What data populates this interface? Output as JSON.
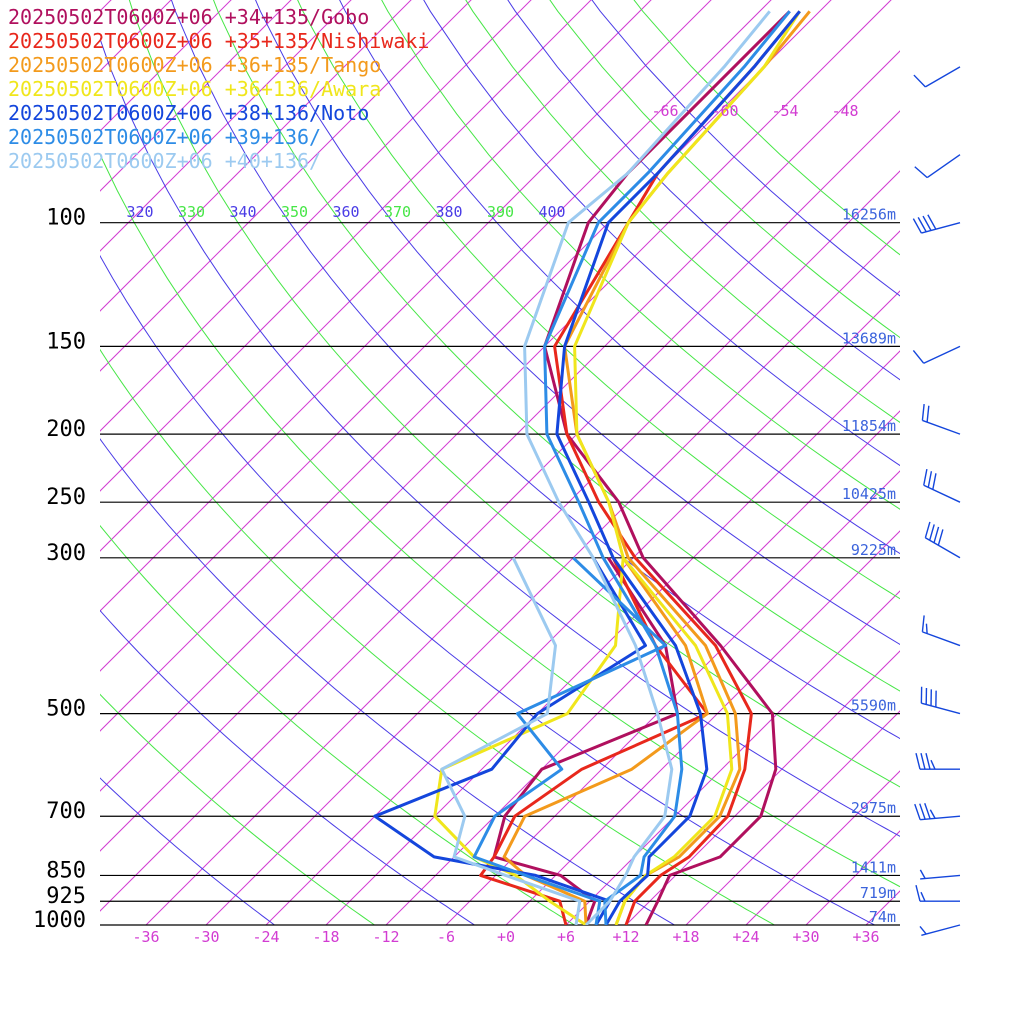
{
  "legend": [
    {
      "label": "20250502T0600Z+06 +34+135/Gobo",
      "color": "#b0105e"
    },
    {
      "label": "20250502T0600Z+06 +35+135/Nishiwaki",
      "color": "#e8281c"
    },
    {
      "label": "20250502T0600Z+06 +36+135/Tango",
      "color": "#f39a1c"
    },
    {
      "label": "20250502T0600Z+06 +36+136/Awara",
      "color": "#f0e61c"
    },
    {
      "label": "20250502T0600Z+06 +38+136/Noto",
      "color": "#1446dc"
    },
    {
      "label": "20250502T0600Z+06 +39+136/",
      "color": "#2d8ce6"
    },
    {
      "label": "20250502T0600Z+06 +40+136/",
      "color": "#9ccaf0"
    }
  ],
  "chart_data": {
    "type": "line",
    "chart_kind": "skew-T log-p sounding",
    "y_axis": {
      "label": "pressure (hPa)",
      "scale": "log",
      "range": [
        1000,
        100
      ],
      "ticks": [
        "100",
        "150",
        "200",
        "250",
        "300",
        "500",
        "700",
        "850",
        "925",
        "1000"
      ]
    },
    "x_axis": {
      "label": "temperature (°C)",
      "range": [
        -40,
        40
      ],
      "ticks": [
        "-36",
        "-30",
        "-24",
        "-18",
        "-12",
        "-6",
        "+0",
        "+6",
        "+12",
        "+18",
        "+24",
        "+30",
        "+36"
      ]
    },
    "top_temperature_labels": [
      "-66",
      "-60",
      "-54",
      "-48"
    ],
    "height_labels": [
      {
        "p": 100,
        "text": "16256m"
      },
      {
        "p": 150,
        "text": "13689m"
      },
      {
        "p": 200,
        "text": "11854m"
      },
      {
        "p": 250,
        "text": "10425m"
      },
      {
        "p": 300,
        "text": "9225m"
      },
      {
        "p": 500,
        "text": "5590m"
      },
      {
        "p": 700,
        "text": "2975m"
      },
      {
        "p": 850,
        "text": "1411m"
      },
      {
        "p": 925,
        "text": "719m"
      },
      {
        "p": 1000,
        "text": "74m"
      }
    ],
    "theta_labels": [
      "320",
      "330",
      "340",
      "350",
      "360",
      "370",
      "380",
      "390",
      "400"
    ],
    "grid": true,
    "legend_position": "top-left",
    "series": [
      {
        "name": "20250502T0600Z+06 +34+135/Gobo",
        "color": "#b0105e",
        "temperature": [
          [
            1000,
            14
          ],
          [
            925,
            12.8
          ],
          [
            850,
            11.4
          ],
          [
            800,
            14.6
          ],
          [
            700,
            14.6
          ],
          [
            600,
            11.4
          ],
          [
            500,
            5.5
          ],
          [
            400,
            -6.5
          ],
          [
            300,
            -23
          ],
          [
            250,
            -31
          ],
          [
            200,
            -43
          ],
          [
            150,
            -54
          ],
          [
            100,
            -62
          ],
          [
            85,
            -63
          ],
          [
            60,
            -63
          ],
          [
            50,
            -63
          ]
        ],
        "dewpoint": [
          [
            1000,
            8
          ],
          [
            925,
            6.5
          ],
          [
            850,
            0.5
          ],
          [
            800,
            -8
          ],
          [
            700,
            -11
          ],
          [
            600,
            -12
          ],
          [
            500,
            -4
          ],
          [
            400,
            -12
          ],
          [
            300,
            -26.5
          ]
        ]
      },
      {
        "name": "20250502T0600Z+06 +35+135/Nishiwaki",
        "color": "#e8281c",
        "temperature": [
          [
            1000,
            12
          ],
          [
            925,
            10.5
          ],
          [
            850,
            10.5
          ],
          [
            800,
            11.5
          ],
          [
            700,
            11.3
          ],
          [
            600,
            8.3
          ],
          [
            500,
            3.4
          ],
          [
            400,
            -7
          ],
          [
            300,
            -23.8
          ],
          [
            250,
            -33
          ],
          [
            200,
            -43
          ],
          [
            150,
            -53
          ],
          [
            100,
            -58
          ],
          [
            85,
            -60
          ],
          [
            60,
            -61
          ],
          [
            50,
            -62
          ]
        ],
        "dewpoint": [
          [
            1000,
            6
          ],
          [
            925,
            3
          ],
          [
            850,
            -7.5
          ],
          [
            800,
            -8
          ],
          [
            700,
            -10
          ],
          [
            600,
            -8
          ],
          [
            500,
            -1
          ],
          [
            400,
            -13
          ],
          [
            300,
            -26
          ]
        ]
      },
      {
        "name": "20250502T0600Z+06 +36+135/Tango",
        "color": "#f39a1c",
        "temperature": [
          [
            1000,
            11
          ],
          [
            925,
            9.5
          ],
          [
            850,
            9
          ],
          [
            800,
            10.5
          ],
          [
            700,
            10.5
          ],
          [
            600,
            7.8
          ],
          [
            500,
            1.8
          ],
          [
            400,
            -8
          ],
          [
            300,
            -24.5
          ],
          [
            250,
            -32
          ],
          [
            200,
            -42
          ],
          [
            150,
            -52
          ],
          [
            100,
            -58
          ],
          [
            85,
            -59
          ],
          [
            60,
            -60
          ],
          [
            50,
            -61
          ]
        ],
        "dewpoint": [
          [
            1000,
            8
          ],
          [
            925,
            5.5
          ],
          [
            850,
            -3
          ],
          [
            800,
            -7
          ],
          [
            700,
            -9
          ],
          [
            600,
            -3
          ],
          [
            500,
            -1
          ],
          [
            400,
            -10
          ],
          [
            300,
            -25
          ]
        ]
      },
      {
        "name": "20250502T0600Z+06 +36+136/Awara",
        "color": "#f0e61c",
        "temperature": [
          [
            1000,
            11
          ],
          [
            925,
            9.5
          ],
          [
            850,
            9
          ],
          [
            800,
            10
          ],
          [
            700,
            10
          ],
          [
            600,
            7
          ],
          [
            500,
            1
          ],
          [
            400,
            -9
          ],
          [
            300,
            -25
          ],
          [
            250,
            -32
          ],
          [
            200,
            -42
          ],
          [
            150,
            -51
          ],
          [
            100,
            -58
          ],
          [
            85,
            -59
          ],
          [
            60,
            -60
          ],
          [
            50,
            -62
          ]
        ],
        "dewpoint": [
          [
            1000,
            8
          ],
          [
            925,
            2
          ],
          [
            850,
            -4
          ],
          [
            800,
            -10
          ],
          [
            700,
            -18
          ],
          [
            600,
            -22
          ],
          [
            500,
            -15
          ],
          [
            400,
            -17
          ],
          [
            300,
            -25
          ]
        ]
      },
      {
        "name": "20250502T0600Z+06 +38+136/Noto",
        "color": "#1446dc",
        "temperature": [
          [
            1000,
            10
          ],
          [
            925,
            9
          ],
          [
            850,
            9.2
          ],
          [
            800,
            7.5
          ],
          [
            700,
            7.5
          ],
          [
            600,
            4.5
          ],
          [
            500,
            -1.7
          ],
          [
            400,
            -11
          ],
          [
            300,
            -26
          ],
          [
            250,
            -34
          ],
          [
            200,
            -44
          ],
          [
            150,
            -52
          ],
          [
            100,
            -60
          ],
          [
            85,
            -60
          ],
          [
            60,
            -61
          ],
          [
            50,
            -62
          ]
        ],
        "dewpoint": [
          [
            1000,
            9
          ],
          [
            925,
            8
          ],
          [
            850,
            -2
          ],
          [
            800,
            -14
          ],
          [
            700,
            -24
          ],
          [
            600,
            -17
          ],
          [
            500,
            -18
          ],
          [
            400,
            -14
          ],
          [
            300,
            -28
          ]
        ]
      },
      {
        "name": "20250502T0600Z+06 +39+136/",
        "color": "#2d8ce6",
        "temperature": [
          [
            1000,
            10
          ],
          [
            925,
            7.5
          ],
          [
            850,
            8.5
          ],
          [
            800,
            7
          ],
          [
            700,
            6
          ],
          [
            600,
            2
          ],
          [
            500,
            -4
          ],
          [
            400,
            -13
          ],
          [
            300,
            -27
          ],
          [
            250,
            -35
          ],
          [
            200,
            -45
          ],
          [
            150,
            -54
          ],
          [
            100,
            -61
          ],
          [
            85,
            -61
          ],
          [
            60,
            -62
          ],
          [
            50,
            -63
          ]
        ],
        "dewpoint": [
          [
            1000,
            9
          ],
          [
            925,
            7
          ],
          [
            850,
            -3
          ],
          [
            800,
            -10
          ],
          [
            700,
            -12
          ],
          [
            600,
            -10
          ],
          [
            500,
            -20
          ],
          [
            400,
            -12
          ],
          [
            300,
            -30
          ]
        ]
      },
      {
        "name": "20250502T0600Z+06 +40+136/",
        "color": "#9ccaf0",
        "temperature": [
          [
            1000,
            8
          ],
          [
            925,
            8
          ],
          [
            850,
            7
          ],
          [
            800,
            6
          ],
          [
            700,
            5
          ],
          [
            600,
            1
          ],
          [
            500,
            -6
          ],
          [
            400,
            -15
          ],
          [
            300,
            -28
          ],
          [
            250,
            -37
          ],
          [
            200,
            -47
          ],
          [
            150,
            -56
          ],
          [
            100,
            -64
          ],
          [
            85,
            -63
          ],
          [
            60,
            -64
          ],
          [
            50,
            -65
          ]
        ],
        "dewpoint": [
          [
            1000,
            7
          ],
          [
            925,
            5
          ],
          [
            850,
            -5
          ],
          [
            800,
            -12
          ],
          [
            700,
            -15
          ],
          [
            600,
            -22
          ],
          [
            500,
            -17
          ],
          [
            400,
            -23
          ],
          [
            300,
            -36
          ]
        ]
      }
    ],
    "wind_barbs": {
      "color": "#1446dc",
      "levels": [
        {
          "p": 60,
          "speed": 10,
          "dir": 240
        },
        {
          "p": 80,
          "speed": 10,
          "dir": 235
        },
        {
          "p": 100,
          "speed": 40,
          "dir": 255
        },
        {
          "p": 150,
          "speed": 10,
          "dir": 245
        },
        {
          "p": 200,
          "speed": 20,
          "dir": 290
        },
        {
          "p": 250,
          "speed": 30,
          "dir": 295
        },
        {
          "p": 300,
          "speed": 40,
          "dir": 300
        },
        {
          "p": 400,
          "speed": 15,
          "dir": 290
        },
        {
          "p": 500,
          "speed": 40,
          "dir": 285
        },
        {
          "p": 600,
          "speed": 35,
          "dir": 270
        },
        {
          "p": 700,
          "speed": 35,
          "dir": 265
        },
        {
          "p": 850,
          "speed": 5,
          "dir": 265
        },
        {
          "p": 925,
          "speed": 15,
          "dir": 270
        },
        {
          "p": 1000,
          "speed": 5,
          "dir": 255
        }
      ]
    }
  }
}
